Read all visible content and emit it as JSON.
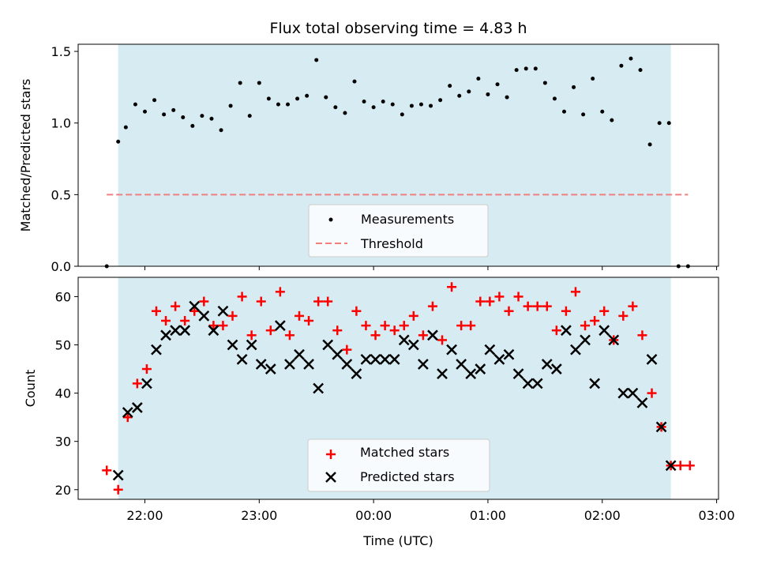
{
  "colors": {
    "observing_window": "#add8e6",
    "threshold": "#f08080",
    "measurement": "#000000",
    "matched": "#ff0000",
    "predicted": "#000000"
  },
  "chart_data": [
    {
      "type": "scatter",
      "title": "Flux total observing time = 4.83 h",
      "xlabel": "",
      "ylabel": "Matched/Predicted stars",
      "xlim": [
        "21:25",
        "03:01"
      ],
      "ylim": [
        0,
        1.55
      ],
      "yticks": [
        0.0,
        0.5,
        1.0,
        1.5
      ],
      "yticklabels": [
        "0.0",
        "0.5",
        "1.0",
        "1.5"
      ],
      "observing_window": {
        "start": "21:46",
        "end": "02:36"
      },
      "threshold": {
        "name": "Threshold",
        "value": 0.5,
        "from": "21:40",
        "to": "02:45"
      },
      "legend": {
        "position": "lower-center"
      },
      "series": [
        {
          "name": "Measurements",
          "x": [
            "21:40",
            "21:46",
            "21:50",
            "21:55",
            "22:00",
            "22:05",
            "22:10",
            "22:15",
            "22:20",
            "22:25",
            "22:30",
            "22:35",
            "22:40",
            "22:45",
            "22:50",
            "22:55",
            "23:00",
            "23:05",
            "23:10",
            "23:15",
            "23:20",
            "23:25",
            "23:30",
            "23:35",
            "23:40",
            "23:45",
            "23:50",
            "23:55",
            "00:00",
            "00:05",
            "00:10",
            "00:15",
            "00:20",
            "00:25",
            "00:30",
            "00:35",
            "00:40",
            "00:45",
            "00:50",
            "00:55",
            "01:00",
            "01:05",
            "01:10",
            "01:15",
            "01:20",
            "01:25",
            "01:30",
            "01:35",
            "01:40",
            "01:45",
            "01:50",
            "01:55",
            "02:00",
            "02:05",
            "02:10",
            "02:15",
            "02:20",
            "02:25",
            "02:30",
            "02:35",
            "02:40",
            "02:45"
          ],
          "y": [
            0.0,
            0.87,
            0.97,
            1.13,
            1.08,
            1.16,
            1.06,
            1.09,
            1.04,
            0.98,
            1.05,
            1.03,
            0.95,
            1.12,
            1.28,
            1.05,
            1.28,
            1.17,
            1.13,
            1.13,
            1.17,
            1.19,
            1.44,
            1.18,
            1.11,
            1.07,
            1.29,
            1.15,
            1.11,
            1.15,
            1.13,
            1.06,
            1.12,
            1.13,
            1.12,
            1.16,
            1.26,
            1.19,
            1.22,
            1.31,
            1.2,
            1.27,
            1.18,
            1.37,
            1.38,
            1.38,
            1.28,
            1.17,
            1.08,
            1.25,
            1.06,
            1.31,
            1.08,
            1.02,
            1.4,
            1.45,
            1.37,
            0.85,
            1.0,
            1.0,
            0.0,
            0.0
          ]
        }
      ]
    },
    {
      "type": "scatter",
      "title": "",
      "xlabel": "Time (UTC)",
      "ylabel": "Count",
      "xlim": [
        "21:25",
        "03:01"
      ],
      "ylim": [
        18,
        64
      ],
      "yticks": [
        20,
        30,
        40,
        50,
        60
      ],
      "xticks": [
        "22:00",
        "23:00",
        "00:00",
        "01:00",
        "02:00",
        "03:00"
      ],
      "observing_window": {
        "start": "21:46",
        "end": "02:36"
      },
      "legend": {
        "position": "lower-center"
      },
      "series": [
        {
          "name": "Matched stars",
          "marker": "plus",
          "x": [
            "21:40",
            "21:46",
            "21:51",
            "21:56",
            "22:01",
            "22:06",
            "22:11",
            "22:16",
            "22:21",
            "22:26",
            "22:31",
            "22:36",
            "22:41",
            "22:46",
            "22:51",
            "22:56",
            "23:01",
            "23:06",
            "23:11",
            "23:16",
            "23:21",
            "23:26",
            "23:31",
            "23:36",
            "23:41",
            "23:46",
            "23:51",
            "23:56",
            "00:01",
            "00:06",
            "00:11",
            "00:16",
            "00:21",
            "00:26",
            "00:31",
            "00:36",
            "00:41",
            "00:46",
            "00:51",
            "00:56",
            "01:01",
            "01:06",
            "01:11",
            "01:16",
            "01:21",
            "01:26",
            "01:31",
            "01:36",
            "01:41",
            "01:46",
            "01:51",
            "01:56",
            "02:01",
            "02:06",
            "02:11",
            "02:16",
            "02:21",
            "02:26",
            "02:31",
            "02:36",
            "02:41",
            "02:46"
          ],
          "y": [
            24,
            20,
            35,
            42,
            45,
            57,
            55,
            58,
            55,
            57,
            59,
            54,
            54,
            56,
            60,
            52,
            59,
            53,
            61,
            52,
            56,
            55,
            59,
            59,
            53,
            49,
            57,
            54,
            52,
            54,
            53,
            54,
            56,
            52,
            58,
            51,
            62,
            54,
            54,
            59,
            59,
            60,
            57,
            60,
            58,
            58,
            58,
            53,
            57,
            61,
            54,
            55,
            57,
            51,
            56,
            58,
            52,
            40,
            33,
            25,
            25,
            25
          ]
        },
        {
          "name": "Predicted stars",
          "marker": "x",
          "x": [
            "21:46",
            "21:51",
            "21:56",
            "22:01",
            "22:06",
            "22:11",
            "22:16",
            "22:21",
            "22:26",
            "22:31",
            "22:36",
            "22:41",
            "22:46",
            "22:51",
            "22:56",
            "23:01",
            "23:06",
            "23:11",
            "23:16",
            "23:21",
            "23:26",
            "23:31",
            "23:36",
            "23:41",
            "23:46",
            "23:51",
            "23:56",
            "00:01",
            "00:06",
            "00:11",
            "00:16",
            "00:21",
            "00:26",
            "00:31",
            "00:36",
            "00:41",
            "00:46",
            "00:51",
            "00:56",
            "01:01",
            "01:06",
            "01:11",
            "01:16",
            "01:21",
            "01:26",
            "01:31",
            "01:36",
            "01:41",
            "01:46",
            "01:51",
            "01:56",
            "02:01",
            "02:06",
            "02:11",
            "02:16",
            "02:21",
            "02:26",
            "02:31",
            "02:36"
          ],
          "y": [
            23,
            36,
            37,
            42,
            49,
            52,
            53,
            53,
            58,
            56,
            53,
            57,
            50,
            47,
            50,
            46,
            45,
            54,
            46,
            48,
            46,
            41,
            50,
            48,
            46,
            44,
            47,
            47,
            47,
            47,
            51,
            50,
            46,
            52,
            44,
            49,
            46,
            44,
            45,
            49,
            47,
            48,
            44,
            42,
            42,
            46,
            45,
            53,
            49,
            51,
            42,
            53,
            51,
            40,
            40,
            38,
            47,
            33,
            25
          ]
        }
      ]
    }
  ]
}
